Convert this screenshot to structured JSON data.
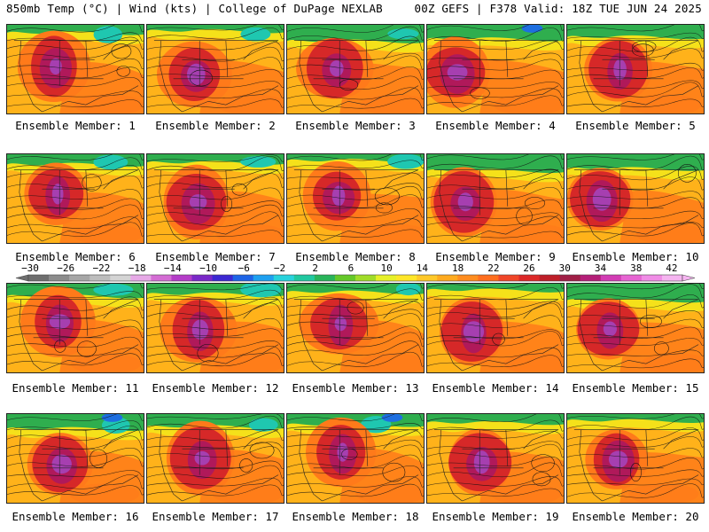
{
  "header": {
    "left": "850mb Temp (°C) | Wind (kts) | College of DuPage NEXLAB",
    "right": "00Z GEFS | F378 Valid: 18Z TUE JUN 24 2025"
  },
  "member_label_prefix": "Ensemble Member: ",
  "members": [
    {
      "label": "Ensemble Member: 1"
    },
    {
      "label": "Ensemble Member: 2"
    },
    {
      "label": "Ensemble Member: 3"
    },
    {
      "label": "Ensemble Member: 4"
    },
    {
      "label": "Ensemble Member: 5"
    },
    {
      "label": "Ensemble Member: 6"
    },
    {
      "label": "Ensemble Member: 7"
    },
    {
      "label": "Ensemble Member: 8"
    },
    {
      "label": "Ensemble Member: 9"
    },
    {
      "label": "Ensemble Member: 10"
    },
    {
      "label": "Ensemble Member: 11"
    },
    {
      "label": "Ensemble Member: 12"
    },
    {
      "label": "Ensemble Member: 13"
    },
    {
      "label": "Ensemble Member: 14"
    },
    {
      "label": "Ensemble Member: 15"
    },
    {
      "label": "Ensemble Member: 16"
    },
    {
      "label": "Ensemble Member: 17"
    },
    {
      "label": "Ensemble Member: 18"
    },
    {
      "label": "Ensemble Member: 19"
    },
    {
      "label": "Ensemble Member: 20"
    }
  ],
  "colorbar": {
    "tick_labels": [
      "-30",
      "-26",
      "-22",
      "-18",
      "-14",
      "-10",
      "-6",
      "-2",
      "2",
      "6",
      "10",
      "14",
      "18",
      "22",
      "26",
      "30",
      "34",
      "38",
      "42"
    ],
    "colors": [
      "#6e6e6e",
      "#8c8c8c",
      "#a6a6a6",
      "#bdbdbd",
      "#d4d4d4",
      "#e6a8e6",
      "#d46cd4",
      "#b43cc8",
      "#7a28c8",
      "#3c28d2",
      "#1e64e6",
      "#1ea0f0",
      "#28d2dc",
      "#20c8a0",
      "#28b45a",
      "#64c828",
      "#a0dc28",
      "#e6f028",
      "#ffe628",
      "#ffc828",
      "#ffaa1e",
      "#ff8c1e",
      "#ff6e1e",
      "#f04628",
      "#dc2828",
      "#be1e28",
      "#a01e46",
      "#b41e78",
      "#d23cb4",
      "#e664d2",
      "#f08ce6",
      "#f5b4f0"
    ]
  },
  "palette": {
    "hot": "#d62828",
    "very_hot": "#b0195a",
    "extreme": "#a63fb0",
    "warm": "#ff7a1a",
    "mild": "#ffb21a",
    "cool": "#f5e11a",
    "cold_green": "#2fae4e",
    "cold_teal": "#1fc7b0",
    "cold_blue": "#1e6fe0"
  }
}
